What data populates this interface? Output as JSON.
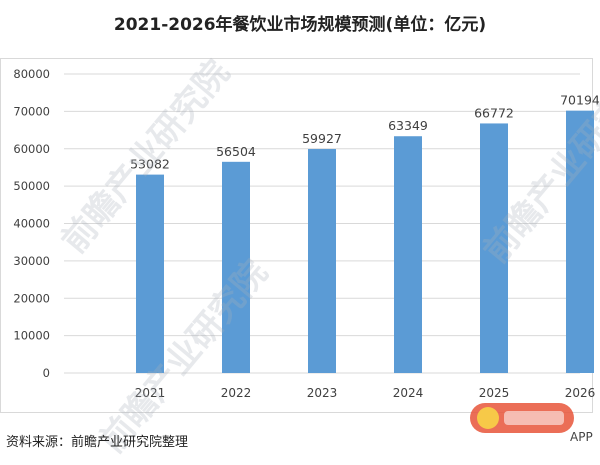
{
  "title": "2021-2026年餐饮业市场规模预测(单位：亿元)",
  "source": "资料来源：前瞻产业研究院整理",
  "watermark": "前瞻产业研究院",
  "badge_text": "APP",
  "colors": {
    "bar": "#5b9bd5",
    "grid": "#d9d9d9",
    "text": "#404040"
  },
  "chart_data": {
    "type": "bar",
    "title": "2021-2026年餐饮业市场规模预测(单位：亿元)",
    "xlabel": "",
    "ylabel": "",
    "categories": [
      "2021",
      "2022",
      "2023",
      "2024",
      "2025",
      "2026"
    ],
    "values": [
      53082,
      56504,
      59927,
      63349,
      66772,
      70194
    ],
    "ylim": [
      0,
      80000
    ],
    "yticks": [
      0,
      10000,
      20000,
      30000,
      40000,
      50000,
      60000,
      70000,
      80000
    ],
    "grid": true,
    "legend": "none"
  }
}
